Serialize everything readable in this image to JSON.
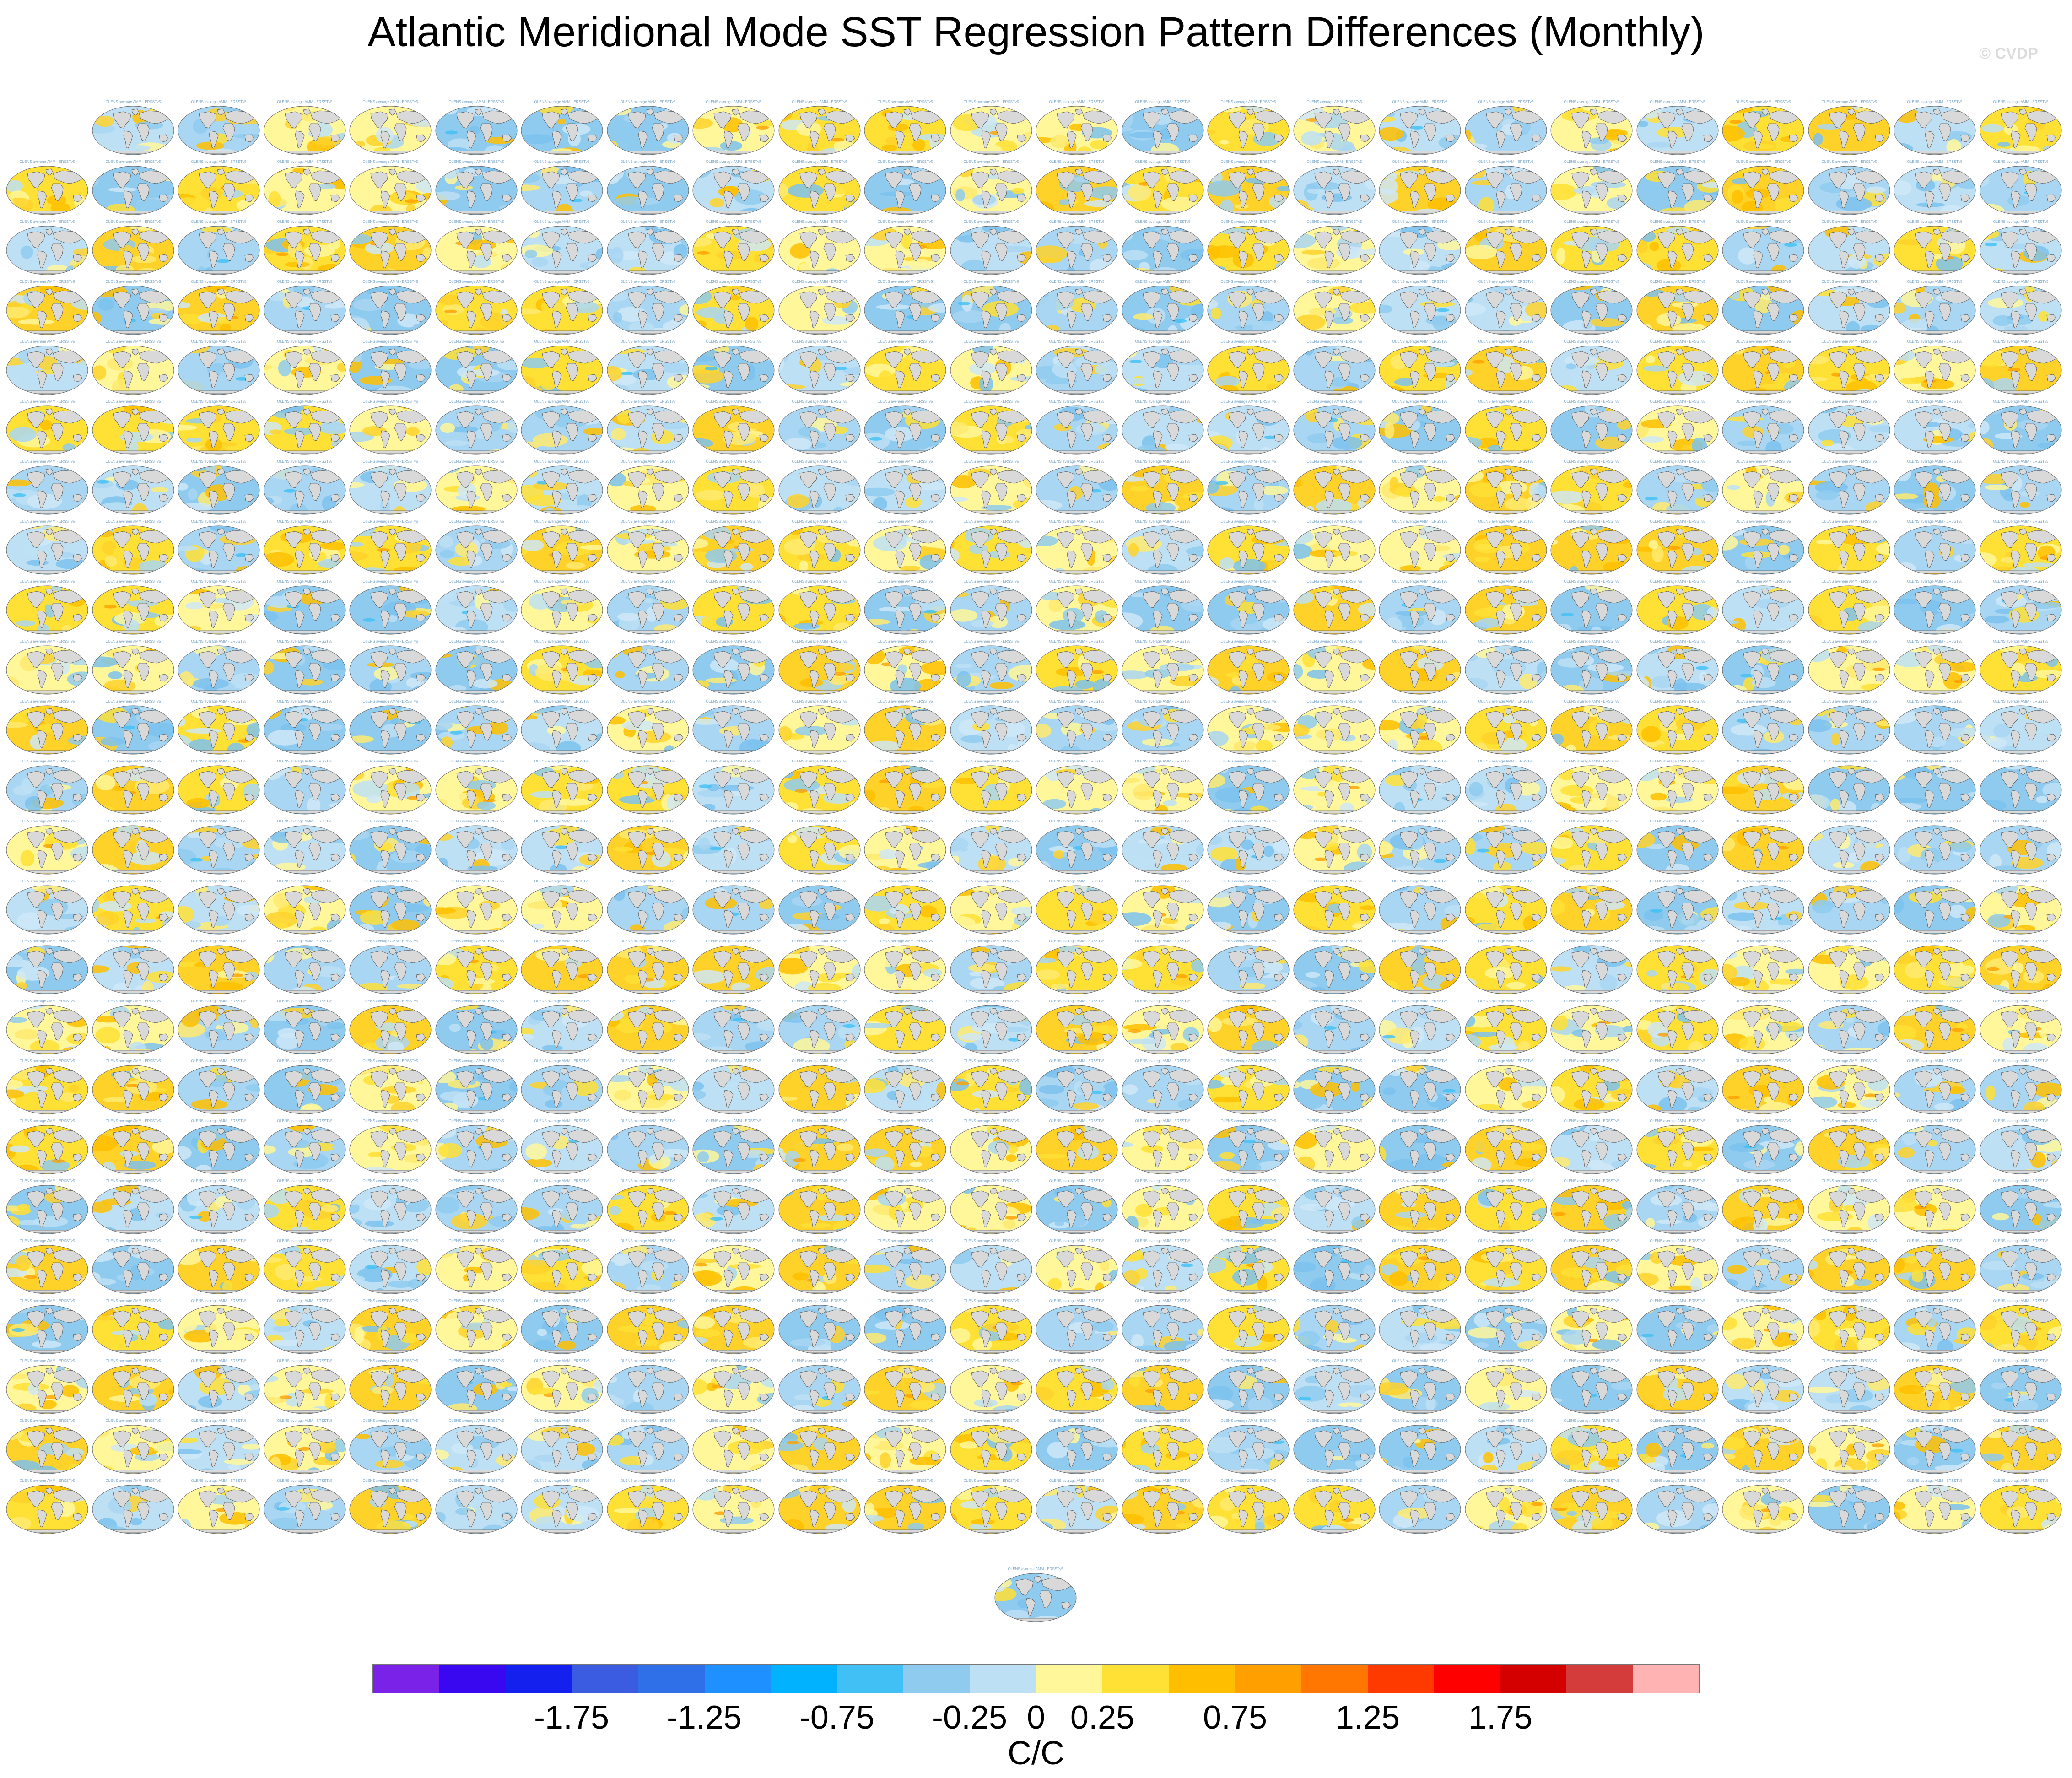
{
  "title": "Atlantic Meridional Mode SST Regression Pattern Differences (Monthly)",
  "credit": "© CVDP",
  "map_panels": {
    "columns": 24,
    "rows": 24,
    "first_row_starts_at_column": 2,
    "extra_panels_below": 1,
    "panel_title_template": "OLENS average AMM - ERSSTv5"
  },
  "colorbar": {
    "colors": [
      "#7b22e8",
      "#3a08f0",
      "#1421ee",
      "#3b5be0",
      "#2f6fe8",
      "#1e90ff",
      "#00b2ff",
      "#40c0f5",
      "#8fcbee",
      "#bde0f5",
      "#fff79a",
      "#ffe135",
      "#ffbf00",
      "#ffa000",
      "#ff7700",
      "#ff3a00",
      "#ff0000",
      "#d40000",
      "#d43b3b",
      "#ffb3b3"
    ],
    "tick_labels": [
      "-1.75",
      "-1.25",
      "-0.75",
      "-0.25",
      "0",
      "0.25",
      "0.75",
      "1.25",
      "1.75"
    ],
    "units": "C/C"
  },
  "land_color": "#d9d9d9"
}
